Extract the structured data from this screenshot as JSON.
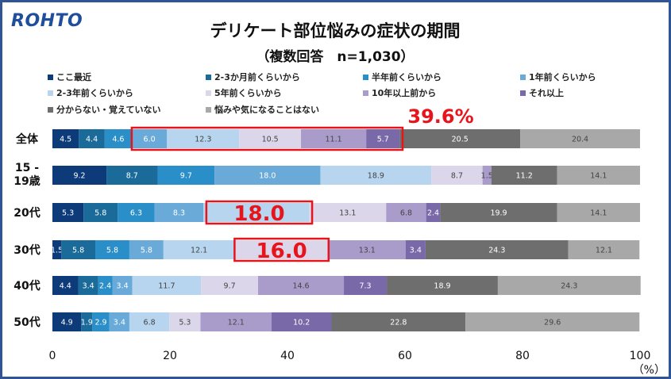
{
  "logo": "ROHTO",
  "chart_data": {
    "type": "bar",
    "orientation": "horizontal",
    "stacked": true,
    "title": "デリケート部位悩みの症状の期間",
    "subtitle": "（複数回答　n=1,030）",
    "xlim": [
      0,
      100
    ],
    "xticks": [
      "0",
      "20",
      "40",
      "60",
      "80",
      "100"
    ],
    "unit_label": "（%）",
    "categories": [
      "全体",
      "15 -\n19歳",
      "20代",
      "30代",
      "40代",
      "50代"
    ],
    "series": [
      {
        "name": "ここ最近",
        "color": "#0d3b7a",
        "values": [
          4.5,
          9.2,
          5.3,
          1.5,
          4.4,
          4.9
        ]
      },
      {
        "name": "2-3か月前くらいから",
        "color": "#1a6a9a",
        "values": [
          4.4,
          8.7,
          5.8,
          5.8,
          3.4,
          1.9
        ]
      },
      {
        "name": "半年前くらいから",
        "color": "#2a8ec8",
        "values": [
          4.6,
          9.7,
          6.3,
          5.8,
          2.4,
          2.9
        ]
      },
      {
        "name": "1年前くらいから",
        "color": "#6aaad9",
        "values": [
          6.0,
          18.0,
          8.3,
          5.8,
          3.4,
          3.4
        ]
      },
      {
        "name": "2-3年前くらいから",
        "color": "#b7d5ee",
        "values": [
          12.3,
          18.9,
          18.0,
          12.1,
          11.7,
          6.8
        ]
      },
      {
        "name": "5年前くらいから",
        "color": "#dcd6ea",
        "values": [
          10.5,
          8.7,
          13.1,
          16.0,
          9.7,
          5.3
        ]
      },
      {
        "name": "10年以上前から",
        "color": "#a99ccb",
        "values": [
          11.1,
          1.5,
          6.8,
          13.1,
          14.6,
          12.1
        ]
      },
      {
        "name": "それ以上",
        "color": "#7a69a8",
        "values": [
          5.7,
          0.0,
          2.4,
          3.4,
          7.3,
          10.2
        ]
      },
      {
        "name": "分からない・覚えていない",
        "color": "#6e6e6e",
        "values": [
          20.5,
          11.2,
          19.9,
          24.3,
          18.9,
          22.8
        ]
      },
      {
        "name": "悩みや気になることはない",
        "color": "#a8a8a8",
        "values": [
          20.4,
          14.1,
          14.1,
          12.1,
          24.3,
          29.6
        ]
      }
    ],
    "label_texts": [
      [
        "4.5",
        "4.4",
        "4.6",
        "6.0",
        "12.3",
        "10.5",
        "11.1",
        "5.7",
        "20.5",
        "20.4"
      ],
      [
        "9.2",
        "8.7",
        "9.7",
        "18.0",
        "18.9",
        "8.7",
        "1.5",
        "",
        "11.2",
        "14.1"
      ],
      [
        "5.3",
        "5.8",
        "6.3",
        "8.3",
        "",
        "13.1",
        "6.8",
        "2.4",
        "19.9",
        "14.1"
      ],
      [
        "1.5",
        "5.8",
        "5.8",
        "5.8",
        "12.1",
        "",
        "13.1",
        "3.4",
        "24.3",
        "12.1"
      ],
      [
        "4.4",
        "3.4",
        "2.4",
        "3.4",
        "11.7",
        "9.7",
        "14.6",
        "7.3",
        "18.9",
        "24.3"
      ],
      [
        "4.9",
        "1.9",
        "2.9",
        "3.4",
        "6.8",
        "5.3",
        "12.1",
        "10.2",
        "22.8",
        "29.6"
      ]
    ],
    "annotations": [
      {
        "text": "39.6%",
        "row": 0,
        "from": 13.5,
        "to": 59.6,
        "callout": "above"
      },
      {
        "text": "18.0",
        "row": 2,
        "from": 26.2,
        "to": 44.2,
        "callout": "inside"
      },
      {
        "text": "16.0",
        "row": 3,
        "from": 31.0,
        "to": 47.0,
        "callout": "inside"
      }
    ]
  }
}
